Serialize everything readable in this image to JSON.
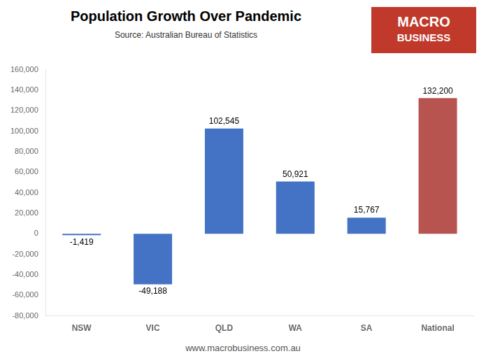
{
  "chart_data": {
    "type": "bar",
    "title": "Population Growth Over Pandemic",
    "subtitle": "Source: Australian Bureau of Statistics",
    "annotations": [
      "www.macrobusiness.com.au",
      "MACRO",
      "BUSINESS"
    ],
    "categories": [
      "NSW",
      "VIC",
      "QLD",
      "WA",
      "SA",
      "National"
    ],
    "values": [
      -1419,
      -49188,
      102545,
      50921,
      15767,
      132200
    ],
    "value_labels": [
      "-1,419",
      "-49,188",
      "102,545",
      "50,921",
      "15,767",
      "132,200"
    ],
    "colors": [
      "#4472C4",
      "#4472C4",
      "#4472C4",
      "#4472C4",
      "#4472C4",
      "#B85450"
    ],
    "ylim": [
      -80000,
      160000
    ],
    "yticks": [
      {
        "value": -80000,
        "label": "-80,000"
      },
      {
        "value": -60000,
        "label": "-60,000"
      },
      {
        "value": -40000,
        "label": "-40,000"
      },
      {
        "value": -20000,
        "label": "-20,000"
      },
      0,
      {
        "value": 20000,
        "label": "20,000"
      },
      {
        "value": 40000,
        "label": "40,000"
      },
      {
        "value": 60000,
        "label": "60,000"
      },
      {
        "value": 80000,
        "label": "80,000"
      },
      {
        "value": 100000,
        "label": "100,000"
      },
      {
        "value": 120000,
        "label": "120,000"
      },
      {
        "value": 140000,
        "label": "140,000"
      },
      {
        "value": 160000,
        "label": "160,000"
      }
    ],
    "grid": false,
    "data_labels": true
  }
}
